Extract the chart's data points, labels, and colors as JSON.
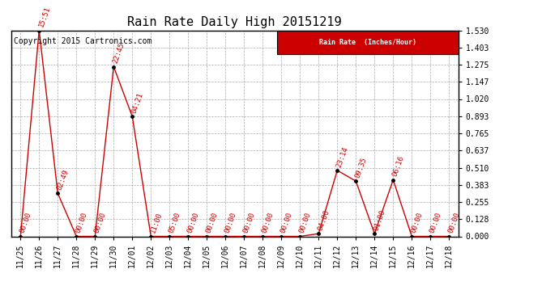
{
  "title": "Rain Rate Daily High 20151219",
  "copyright": "Copyright 2015 Cartronics.com",
  "x_labels": [
    "11/25",
    "11/26",
    "11/27",
    "11/28",
    "11/29",
    "11/30",
    "12/01",
    "12/02",
    "12/03",
    "12/04",
    "12/05",
    "12/06",
    "12/07",
    "12/08",
    "12/09",
    "12/10",
    "12/11",
    "12/12",
    "12/13",
    "12/14",
    "12/15",
    "12/16",
    "12/17",
    "12/18"
  ],
  "x_indices": [
    0,
    1,
    2,
    3,
    4,
    5,
    6,
    7,
    8,
    9,
    10,
    11,
    12,
    13,
    14,
    15,
    16,
    17,
    18,
    19,
    20,
    21,
    22,
    23
  ],
  "y_values": [
    0.0,
    1.53,
    0.32,
    0.0,
    0.0,
    1.26,
    0.89,
    0.0,
    0.0,
    0.0,
    0.0,
    0.0,
    0.0,
    0.0,
    0.0,
    0.0,
    0.02,
    0.49,
    0.41,
    0.02,
    0.42,
    0.0,
    0.0,
    0.0
  ],
  "time_labels": [
    "00:00",
    "15:51",
    "02:49",
    "00:00",
    "00:00",
    "22:45",
    "04:21",
    "11:00",
    "05:00",
    "00:00",
    "00:00",
    "00:00",
    "00:00",
    "00:00",
    "00:00",
    "00:00",
    "04:00",
    "23:14",
    "09:35",
    "01:00",
    "06:16",
    "00:00",
    "00:00",
    "00:00"
  ],
  "y_ticks": [
    0.0,
    0.128,
    0.255,
    0.383,
    0.51,
    0.637,
    0.765,
    0.893,
    1.02,
    1.147,
    1.275,
    1.403,
    1.53
  ],
  "y_tick_labels": [
    "0.000",
    "0.128",
    "0.255",
    "0.383",
    "0.510",
    "0.637",
    "0.765",
    "0.893",
    "1.020",
    "1.147",
    "1.275",
    "1.403",
    "1.530"
  ],
  "line_color": "#cc0000",
  "marker_color": "#000000",
  "bg_color": "#ffffff",
  "grid_color": "#aaaaaa",
  "legend_bg": "#cc0000",
  "legend_text": "Rain Rate  (Inches/Hour)",
  "ylim": [
    0.0,
    1.53
  ],
  "title_fontsize": 11,
  "tick_fontsize": 7,
  "time_fontsize": 6.5,
  "copyright_fontsize": 7
}
